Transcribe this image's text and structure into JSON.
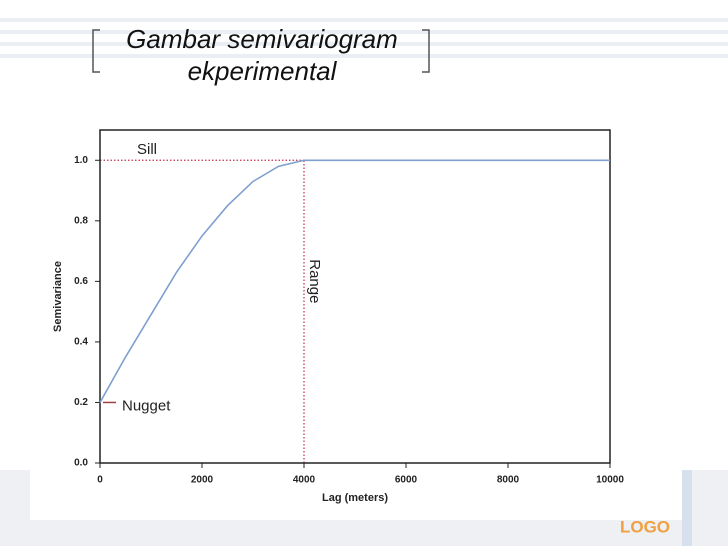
{
  "slide": {
    "title_lines": [
      "Gambar semivariogram",
      "ekperimental"
    ],
    "logo": "LOGO"
  },
  "chart_data": {
    "type": "line",
    "x": [
      0,
      500,
      1000,
      1500,
      2000,
      2500,
      3000,
      3500,
      4000,
      10000
    ],
    "values": [
      0.2,
      0.35,
      0.49,
      0.63,
      0.75,
      0.85,
      0.93,
      0.98,
      1.0,
      1.0
    ],
    "color": "#7f9fcf",
    "xlim": [
      0,
      10000
    ],
    "xticks": [
      0,
      2000,
      4000,
      6000,
      8000,
      10000
    ],
    "ylim": [
      0,
      1.1
    ],
    "yticks": [
      {
        "value": 0,
        "label": "0.0"
      },
      0.2,
      0.4,
      0.6,
      0.8,
      {
        "value": 1.0,
        "label": "1.0"
      }
    ],
    "xlabel": "Lag (meters)",
    "ylabel": "Semivariance",
    "sill": 1.0,
    "sill_label": "Sill",
    "range": 4000,
    "range_label": "Range",
    "nugget": 0.2,
    "nugget_label": "Nugget",
    "reference_color": "#c0304a"
  }
}
